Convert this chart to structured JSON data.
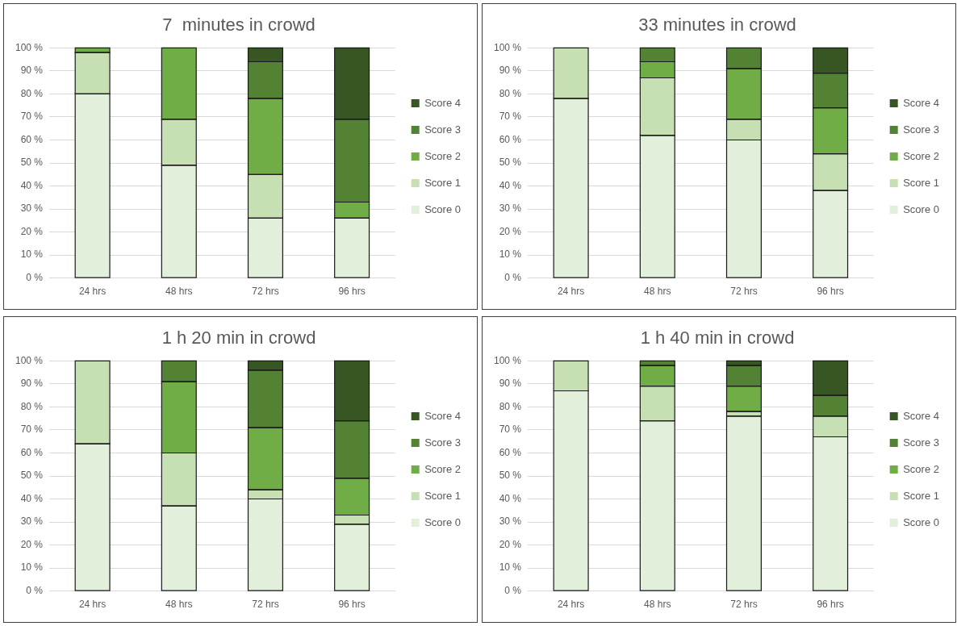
{
  "chart_data": [
    {
      "type": "bar",
      "title": "7  minutes in crowd",
      "categories": [
        "24 hrs",
        "48 hrs",
        "72 hrs",
        "96 hrs"
      ],
      "stacked": true,
      "ylim": [
        0,
        100
      ],
      "yticks": [
        {
          "value": 0,
          "label": "0 %"
        },
        {
          "value": 10,
          "label": "10 %"
        },
        {
          "value": 20,
          "label": "20 %"
        },
        {
          "value": 30,
          "label": "30 %"
        },
        {
          "value": 40,
          "label": "40 %"
        },
        {
          "value": 50,
          "label": "50 %"
        },
        {
          "value": 60,
          "label": "60 %"
        },
        {
          "value": 70,
          "label": "70 %"
        },
        {
          "value": 80,
          "label": "80 %"
        },
        {
          "value": 90,
          "label": "90 %"
        },
        {
          "value": 100,
          "label": "100 %"
        }
      ],
      "grid": "y",
      "legend": "right",
      "series": [
        {
          "name": "Score 0",
          "color": "#e2efda",
          "values": [
            80,
            49,
            26,
            26
          ]
        },
        {
          "name": "Score 1",
          "color": "#c6e0b4",
          "values": [
            18,
            20,
            19,
            0
          ]
        },
        {
          "name": "Score 2",
          "color": "#70ad47",
          "values": [
            2,
            31,
            33,
            7
          ]
        },
        {
          "name": "Score 3",
          "color": "#548235",
          "values": [
            0,
            0,
            16,
            36
          ]
        },
        {
          "name": "Score 4",
          "color": "#375623",
          "values": [
            0,
            0,
            6,
            31
          ]
        }
      ]
    },
    {
      "type": "bar",
      "title": "33 minutes in crowd",
      "categories": [
        "24 hrs",
        "48 hrs",
        "72 hrs",
        "96 hrs"
      ],
      "stacked": true,
      "ylim": [
        0,
        100
      ],
      "yticks": [
        {
          "value": 0,
          "label": "0 %"
        },
        {
          "value": 10,
          "label": "10 %"
        },
        {
          "value": 20,
          "label": "20 %"
        },
        {
          "value": 30,
          "label": "30 %"
        },
        {
          "value": 40,
          "label": "40 %"
        },
        {
          "value": 50,
          "label": "50 %"
        },
        {
          "value": 60,
          "label": "60 %"
        },
        {
          "value": 70,
          "label": "70 %"
        },
        {
          "value": 80,
          "label": "80 %"
        },
        {
          "value": 90,
          "label": "90 %"
        },
        {
          "value": 100,
          "label": "100 %"
        }
      ],
      "grid": "y",
      "legend": "right",
      "series": [
        {
          "name": "Score 0",
          "color": "#e2efda",
          "values": [
            78,
            62,
            60,
            38
          ]
        },
        {
          "name": "Score 1",
          "color": "#c6e0b4",
          "values": [
            22,
            25,
            9,
            16
          ]
        },
        {
          "name": "Score 2",
          "color": "#70ad47",
          "values": [
            0,
            7,
            22,
            20
          ]
        },
        {
          "name": "Score 3",
          "color": "#548235",
          "values": [
            0,
            6,
            9,
            15
          ]
        },
        {
          "name": "Score 4",
          "color": "#375623",
          "values": [
            0,
            0,
            0,
            11
          ]
        }
      ]
    },
    {
      "type": "bar",
      "title": "1 h 20 min in crowd",
      "categories": [
        "24 hrs",
        "48 hrs",
        "72 hrs",
        "96 hrs"
      ],
      "stacked": true,
      "ylim": [
        0,
        100
      ],
      "yticks": [
        {
          "value": 0,
          "label": "0 %"
        },
        {
          "value": 10,
          "label": "10 %"
        },
        {
          "value": 20,
          "label": "20 %"
        },
        {
          "value": 30,
          "label": "30 %"
        },
        {
          "value": 40,
          "label": "40 %"
        },
        {
          "value": 50,
          "label": "50 %"
        },
        {
          "value": 60,
          "label": "60 %"
        },
        {
          "value": 70,
          "label": "70 %"
        },
        {
          "value": 80,
          "label": "80 %"
        },
        {
          "value": 90,
          "label": "90 %"
        },
        {
          "value": 100,
          "label": "100 %"
        }
      ],
      "grid": "y",
      "legend": "right",
      "series": [
        {
          "name": "Score 0",
          "color": "#e2efda",
          "values": [
            64,
            37,
            40,
            29
          ]
        },
        {
          "name": "Score 1",
          "color": "#c6e0b4",
          "values": [
            36,
            23,
            4,
            4
          ]
        },
        {
          "name": "Score 2",
          "color": "#70ad47",
          "values": [
            0,
            31,
            27,
            16
          ]
        },
        {
          "name": "Score 3",
          "color": "#548235",
          "values": [
            0,
            9,
            25,
            25
          ]
        },
        {
          "name": "Score 4",
          "color": "#375623",
          "values": [
            0,
            0,
            4,
            26
          ]
        }
      ]
    },
    {
      "type": "bar",
      "title": "1 h 40 min in crowd",
      "categories": [
        "24 hrs",
        "48 hrs",
        "72 hrs",
        "96 hrs"
      ],
      "stacked": true,
      "ylim": [
        0,
        100
      ],
      "yticks": [
        {
          "value": 0,
          "label": "0 %"
        },
        {
          "value": 10,
          "label": "10 %"
        },
        {
          "value": 20,
          "label": "20 %"
        },
        {
          "value": 30,
          "label": "30 %"
        },
        {
          "value": 40,
          "label": "40 %"
        },
        {
          "value": 50,
          "label": "50 %"
        },
        {
          "value": 60,
          "label": "60 %"
        },
        {
          "value": 70,
          "label": "70 %"
        },
        {
          "value": 80,
          "label": "80 %"
        },
        {
          "value": 90,
          "label": "90 %"
        },
        {
          "value": 100,
          "label": "100 %"
        }
      ],
      "grid": "y",
      "legend": "right",
      "series": [
        {
          "name": "Score 0",
          "color": "#e2efda",
          "values": [
            87,
            74,
            76,
            67
          ]
        },
        {
          "name": "Score 1",
          "color": "#c6e0b4",
          "values": [
            13,
            15,
            2,
            9
          ]
        },
        {
          "name": "Score 2",
          "color": "#70ad47",
          "values": [
            0,
            9,
            11,
            0
          ]
        },
        {
          "name": "Score 3",
          "color": "#548235",
          "values": [
            0,
            2,
            9,
            9
          ]
        },
        {
          "name": "Score 4",
          "color": "#375623",
          "values": [
            0,
            0,
            2,
            15
          ]
        }
      ]
    }
  ]
}
